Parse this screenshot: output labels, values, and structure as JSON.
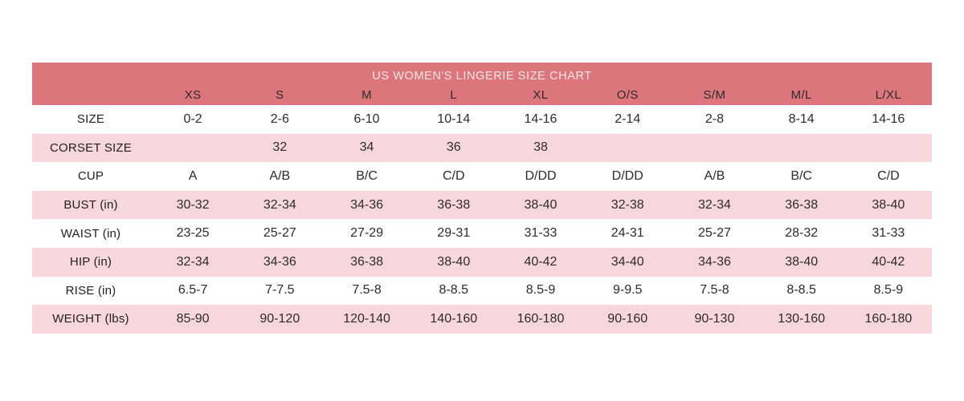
{
  "page": {
    "background": "#ffffff"
  },
  "table": {
    "title": "US WOMEN'S LINGERIE SIZE CHART",
    "header_bg": "#dd757d",
    "header_text_color": "#fce6e6",
    "stripe_color": "#f8d7da",
    "row_bg": "#ffffff",
    "body_text_color": "#2d2b2b",
    "columns": [
      "XS",
      "S",
      "M",
      "L",
      "XL",
      "O/S",
      "S/M",
      "M/L",
      "L/XL"
    ],
    "rows": [
      {
        "label": "SIZE",
        "values": [
          "0-2",
          "2-6",
          "6-10",
          "10-14",
          "14-16",
          "2-14",
          "2-8",
          "8-14",
          "14-16"
        ]
      },
      {
        "label": "CORSET SIZE",
        "values": [
          "",
          "32",
          "34",
          "36",
          "38",
          "",
          "",
          "",
          ""
        ]
      },
      {
        "label": "CUP",
        "values": [
          "A",
          "A/B",
          "B/C",
          "C/D",
          "D/DD",
          "D/DD",
          "A/B",
          "B/C",
          "C/D"
        ]
      },
      {
        "label": "BUST (in)",
        "values": [
          "30-32",
          "32-34",
          "34-36",
          "36-38",
          "38-40",
          "32-38",
          "32-34",
          "36-38",
          "38-40"
        ]
      },
      {
        "label": "WAIST (in)",
        "values": [
          "23-25",
          "25-27",
          "27-29",
          "29-31",
          "31-33",
          "24-31",
          "25-27",
          "28-32",
          "31-33"
        ]
      },
      {
        "label": "HIP (in)",
        "values": [
          "32-34",
          "34-36",
          "36-38",
          "38-40",
          "40-42",
          "34-40",
          "34-36",
          "38-40",
          "40-42"
        ]
      },
      {
        "label": "RISE (in)",
        "values": [
          "6.5-7",
          "7-7.5",
          "7.5-8",
          "8-8.5",
          "8.5-9",
          "9-9.5",
          "7.5-8",
          "8-8.5",
          "8.5-9"
        ]
      },
      {
        "label": "WEIGHT (lbs)",
        "values": [
          "85-90",
          "90-120",
          "120-140",
          "140-160",
          "160-180",
          "90-160",
          "90-130",
          "130-160",
          "160-180"
        ]
      }
    ]
  },
  "chart_data": {
    "type": "table",
    "title": "US WOMEN'S LINGERIE SIZE CHART",
    "columns": [
      "",
      "XS",
      "S",
      "M",
      "L",
      "XL",
      "O/S",
      "S/M",
      "M/L",
      "L/XL"
    ],
    "rows": [
      [
        "SIZE",
        "0-2",
        "2-6",
        "6-10",
        "10-14",
        "14-16",
        "2-14",
        "2-8",
        "8-14",
        "14-16"
      ],
      [
        "CORSET SIZE",
        "",
        "32",
        "34",
        "36",
        "38",
        "",
        "",
        "",
        ""
      ],
      [
        "CUP",
        "A",
        "A/B",
        "B/C",
        "C/D",
        "D/DD",
        "D/DD",
        "A/B",
        "B/C",
        "C/D"
      ],
      [
        "BUST (in)",
        "30-32",
        "32-34",
        "34-36",
        "36-38",
        "38-40",
        "32-38",
        "32-34",
        "36-38",
        "38-40"
      ],
      [
        "WAIST (in)",
        "23-25",
        "25-27",
        "27-29",
        "29-31",
        "31-33",
        "24-31",
        "25-27",
        "28-32",
        "31-33"
      ],
      [
        "HIP (in)",
        "32-34",
        "34-36",
        "36-38",
        "38-40",
        "40-42",
        "34-40",
        "34-36",
        "38-40",
        "40-42"
      ],
      [
        "RISE (in)",
        "6.5-7",
        "7-7.5",
        "7.5-8",
        "8-8.5",
        "8.5-9",
        "9-9.5",
        "7.5-8",
        "8-8.5",
        "8.5-9"
      ],
      [
        "WEIGHT (lbs)",
        "85-90",
        "90-120",
        "120-140",
        "140-160",
        "160-180",
        "90-160",
        "90-130",
        "130-160",
        "160-180"
      ]
    ],
    "layout": {
      "stripe_pattern": "alternating white/pink starting white",
      "header_band_color": "#dd757d"
    }
  }
}
